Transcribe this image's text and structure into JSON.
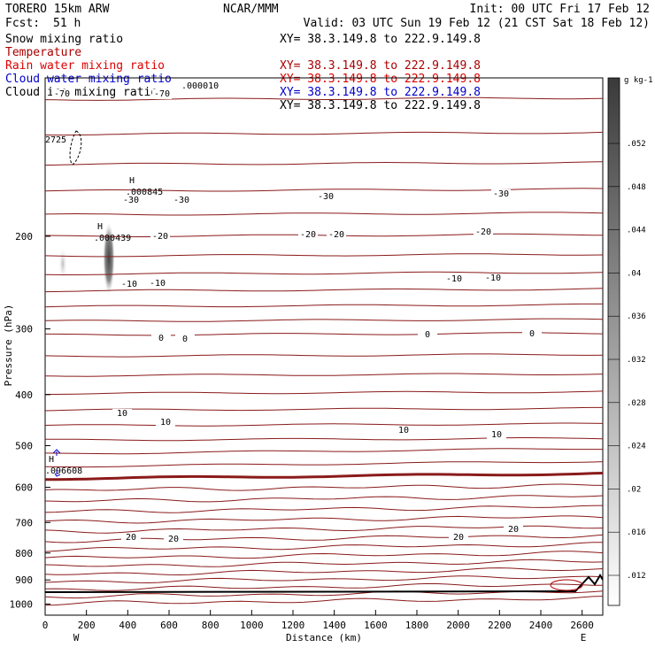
{
  "header": {
    "model": "TORERO   15km ARW",
    "center": "NCAR/MMM",
    "init": "Init: 00 UTC Fri 17 Feb 12",
    "fcst_label": "Fcst:",
    "fcst_value": "51 h",
    "valid": "Valid: 03 UTC Sun 19 Feb 12 (21 CST Sat 18 Feb 12)"
  },
  "legend": [
    {
      "label": "Snow mixing ratio",
      "color": "#000000",
      "xy": ""
    },
    {
      "label": "Temperature",
      "color": "#aa0000",
      "xy": "XY=  38.3.149.8 to 222.9.149.8"
    },
    {
      "label": "Rain water mixing ratio",
      "color": "#dd0000",
      "xy": "XY=  38.3.149.8 to 222.9.149.8"
    },
    {
      "label": "Cloud water mixing ratio",
      "color": "#0000cc",
      "xy": "XY=  38.3.149.8 to 222.9.149.8"
    },
    {
      "label": "Cloud ice mixing ratio",
      "color": "#000000",
      "xy": "XY=  38.3.149.8 to 222.9.149.8"
    }
  ],
  "xy_line0": "XY=  38.3.149.8 to 222.9.149.8",
  "chart_data": {
    "type": "contour-cross-section",
    "xlabel": "Distance (km)",
    "ylabel": "Pressure (hPa)",
    "xlim": [
      0,
      2700
    ],
    "ylim": [
      1050,
      100
    ],
    "y_log": true,
    "x_ticks": [
      0,
      200,
      400,
      600,
      800,
      1000,
      1200,
      1400,
      1600,
      1800,
      2000,
      2200,
      2400,
      2600
    ],
    "y_ticks": [
      200,
      300,
      400,
      500,
      600,
      700,
      800,
      900,
      1000
    ],
    "end_labels": {
      "left": "W",
      "right": "E"
    },
    "colorbar": {
      "unit": "g kg-1",
      "ticks": [
        ".052",
        ".048",
        ".044",
        ".04",
        ".036",
        ".032",
        ".028",
        ".024",
        ".02",
        ".016",
        ".012"
      ]
    },
    "temperature_contour_labels": [
      "-70",
      "-70",
      "-30",
      "-30",
      "-30",
      "-30",
      "-20",
      "-20",
      "-20",
      "-20",
      "-10",
      "-10",
      "-10",
      "-10",
      "0",
      "0",
      "0",
      "0",
      "10",
      "10",
      "10",
      "10",
      "20",
      "20",
      "20",
      "20"
    ],
    "highs": [
      {
        "label": "H",
        "value": ".000845",
        "x": 380,
        "p": 290
      },
      {
        "label": "H",
        "value": ".000439",
        "x": 240,
        "p": 385
      },
      {
        "label": "H",
        "value": ".096608",
        "x": 10,
        "p": 775
      }
    ],
    "cloud_ice_top_label": ".000010",
    "partial_label": "2725"
  }
}
